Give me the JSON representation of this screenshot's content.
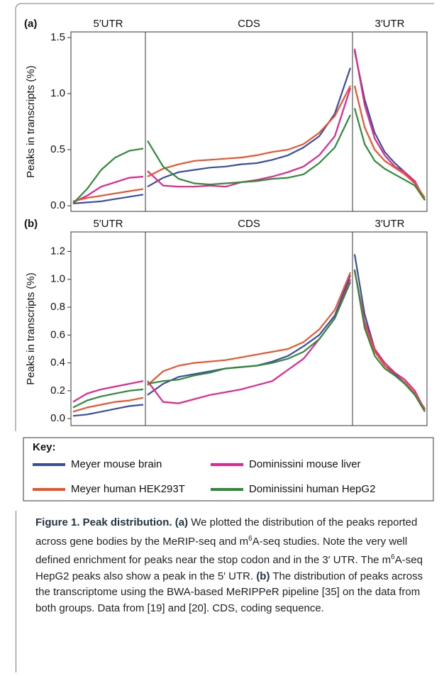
{
  "chart_data": [
    {
      "type": "line",
      "panel_label": "(a)",
      "ylabel": "Peaks in transcripts (%)",
      "sections": [
        "5′UTR",
        "CDS",
        "3′UTR"
      ],
      "ylim": [
        -0.05,
        1.55
      ],
      "yticks": [
        {
          "value": 0,
          "label": "0.0"
        },
        0.5,
        {
          "value": 1,
          "label": "1.0"
        },
        1.5
      ],
      "series": [
        {
          "color": "#3a4ea0",
          "segments": [
            [
              0.02,
              0.03,
              0.04,
              0.06,
              0.08,
              0.1
            ],
            [
              0.17,
              0.25,
              0.3,
              0.32,
              0.34,
              0.35,
              0.37,
              0.38,
              0.41,
              0.45,
              0.52,
              0.62,
              0.82,
              1.23
            ],
            [
              1.38,
              0.95,
              0.65,
              0.48,
              0.38,
              0.3,
              0.2,
              0.05
            ]
          ]
        },
        {
          "color": "#e0278f",
          "segments": [
            [
              0.03,
              0.09,
              0.17,
              0.21,
              0.25,
              0.26
            ],
            [
              0.31,
              0.18,
              0.17,
              0.17,
              0.18,
              0.17,
              0.21,
              0.23,
              0.26,
              0.3,
              0.35,
              0.45,
              0.62,
              1.05
            ],
            [
              1.4,
              0.9,
              0.6,
              0.45,
              0.35,
              0.3,
              0.22,
              0.05
            ]
          ]
        },
        {
          "color": "#e8552f",
          "segments": [
            [
              0.04,
              0.07,
              0.09,
              0.11,
              0.13,
              0.15
            ],
            [
              0.26,
              0.33,
              0.37,
              0.4,
              0.41,
              0.42,
              0.43,
              0.45,
              0.48,
              0.5,
              0.55,
              0.65,
              0.8,
              1.07
            ],
            [
              1.07,
              0.7,
              0.5,
              0.4,
              0.34,
              0.28,
              0.2,
              0.07
            ]
          ]
        },
        {
          "color": "#2f8a3a",
          "segments": [
            [
              0.02,
              0.15,
              0.32,
              0.43,
              0.49,
              0.51
            ],
            [
              0.58,
              0.35,
              0.24,
              0.2,
              0.19,
              0.2,
              0.21,
              0.22,
              0.24,
              0.25,
              0.28,
              0.38,
              0.52,
              0.81
            ],
            [
              0.87,
              0.55,
              0.4,
              0.33,
              0.28,
              0.23,
              0.18,
              0.05
            ]
          ]
        }
      ]
    },
    {
      "type": "line",
      "panel_label": "(b)",
      "ylabel": "Peaks in transcripts (%)",
      "sections": [
        "5′UTR",
        "CDS",
        "3′UTR"
      ],
      "ylim": [
        -0.05,
        1.34
      ],
      "yticks": [
        {
          "value": 0,
          "label": "0.0"
        },
        0.2,
        0.4,
        0.6,
        0.8,
        {
          "value": 1,
          "label": "1.0"
        },
        1.2
      ],
      "series": [
        {
          "color": "#3a4ea0",
          "segments": [
            [
              0.02,
              0.03,
              0.05,
              0.07,
              0.09,
              0.1
            ],
            [
              0.17,
              0.25,
              0.3,
              0.32,
              0.34,
              0.36,
              0.37,
              0.38,
              0.41,
              0.45,
              0.52,
              0.6,
              0.74,
              1.03
            ],
            [
              1.18,
              0.75,
              0.5,
              0.38,
              0.32,
              0.26,
              0.18,
              0.07
            ]
          ]
        },
        {
          "color": "#e0278f",
          "segments": [
            [
              0.12,
              0.18,
              0.21,
              0.23,
              0.25,
              0.27
            ],
            [
              0.27,
              0.12,
              0.11,
              0.14,
              0.17,
              0.19,
              0.21,
              0.24,
              0.27,
              0.35,
              0.43,
              0.57,
              0.72,
              1.0
            ],
            [
              1.06,
              0.7,
              0.5,
              0.4,
              0.33,
              0.28,
              0.2,
              0.06
            ]
          ]
        },
        {
          "color": "#e8552f",
          "segments": [
            [
              0.05,
              0.08,
              0.1,
              0.12,
              0.13,
              0.15
            ],
            [
              0.24,
              0.34,
              0.38,
              0.4,
              0.41,
              0.42,
              0.44,
              0.46,
              0.48,
              0.5,
              0.55,
              0.64,
              0.78,
              1.05
            ],
            [
              1.07,
              0.68,
              0.48,
              0.38,
              0.31,
              0.26,
              0.18,
              0.06
            ]
          ]
        },
        {
          "color": "#2f8a3a",
          "segments": [
            [
              0.08,
              0.13,
              0.16,
              0.18,
              0.2,
              0.21
            ],
            [
              0.25,
              0.27,
              0.28,
              0.31,
              0.33,
              0.36,
              0.37,
              0.38,
              0.4,
              0.43,
              0.48,
              0.57,
              0.72,
              0.98
            ],
            [
              1.07,
              0.65,
              0.45,
              0.36,
              0.31,
              0.25,
              0.17,
              0.05
            ]
          ]
        }
      ]
    }
  ],
  "legend": {
    "title": "Key:",
    "entries": [
      {
        "name": "Meyer mouse brain",
        "color": "#3a4ea0"
      },
      {
        "name": "Dominissini mouse liver",
        "color": "#e0278f"
      },
      {
        "name": "Meyer human HEK293T",
        "color": "#e8552f"
      },
      {
        "name": "Dominissini human HepG2",
        "color": "#2f8a3a"
      }
    ]
  },
  "caption": [
    {
      "text": "Figure 1. Peak distribution.",
      "bold": true
    },
    {
      "text": " (a)",
      "bold": true
    },
    {
      "text": " We plotted the distribution of the peaks reported across gene bodies by the MeRIP-seq and m"
    },
    {
      "text": "6",
      "sup": true
    },
    {
      "text": "A-seq studies. Note the very well defined enrichment for peaks near the stop codon and in the 3′ UTR. The m"
    },
    {
      "text": "6",
      "sup": true
    },
    {
      "text": "A-seq HepG2 peaks also show a peak in the 5′ UTR. "
    },
    {
      "text": "(b)",
      "bold": true
    },
    {
      "text": " The distribution of peaks across the transcriptome using the BWA-based MeRIPPeR pipeline [35] on the data from both groups. Data from [19] and [20]. CDS, coding sequence."
    }
  ]
}
